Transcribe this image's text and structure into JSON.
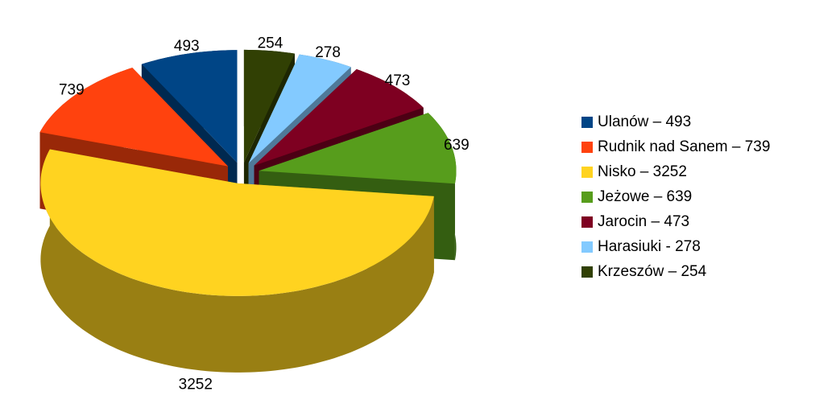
{
  "chart_data": {
    "type": "pie",
    "categories": [
      "Ulanów – 493",
      "Rudnik nad Sanem – 739",
      "Nisko – 3252",
      "Jeżowe – 639",
      "Jarocin – 473",
      "Harasiuki -  278",
      "Krzeszów – 254"
    ],
    "values": [
      493,
      739,
      3252,
      639,
      473,
      278,
      254
    ],
    "colors": [
      "#004586",
      "#ff420e",
      "#ffd320",
      "#579d1c",
      "#7e0021",
      "#83caff",
      "#314004"
    ],
    "legend": "right"
  }
}
